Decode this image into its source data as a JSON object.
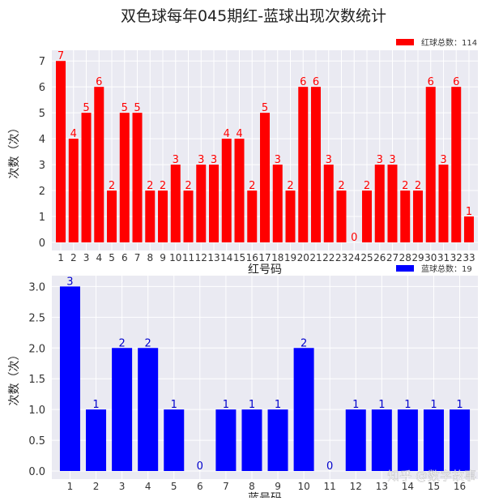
{
  "title": "双色球每年045期红-蓝球出现次数统计",
  "watermark": "知乎 @数字故事",
  "chart_data": [
    {
      "type": "bar",
      "title": "双色球每年045期红-蓝球出现次数统计",
      "xlabel": "红号码",
      "ylabel": "次数（次）",
      "categories": [
        "1",
        "2",
        "3",
        "4",
        "5",
        "6",
        "7",
        "8",
        "9",
        "10",
        "11",
        "12",
        "13",
        "14",
        "15",
        "16",
        "17",
        "18",
        "19",
        "20",
        "21",
        "22",
        "23",
        "24",
        "25",
        "26",
        "27",
        "28",
        "29",
        "30",
        "31",
        "32",
        "33"
      ],
      "values": [
        7,
        4,
        5,
        6,
        2,
        5,
        5,
        2,
        2,
        3,
        2,
        3,
        3,
        4,
        4,
        2,
        5,
        3,
        2,
        6,
        6,
        3,
        2,
        0,
        2,
        3,
        3,
        2,
        2,
        6,
        3,
        6,
        1
      ],
      "ylim": [
        0,
        7.35
      ],
      "yticks": [
        0,
        1,
        2,
        3,
        4,
        5,
        6,
        7
      ],
      "color": "#ff0000",
      "label_color": "#ff0000",
      "legend": "红球总数：114",
      "legend_position": "top-right",
      "grid": true
    },
    {
      "type": "bar",
      "xlabel": "蓝号码",
      "ylabel": "次数（次）",
      "categories": [
        "1",
        "2",
        "3",
        "4",
        "5",
        "6",
        "7",
        "8",
        "9",
        "10",
        "11",
        "12",
        "13",
        "14",
        "15",
        "16"
      ],
      "values": [
        3,
        1,
        2,
        2,
        1,
        0,
        1,
        1,
        1,
        2,
        0,
        1,
        1,
        1,
        1,
        1
      ],
      "ylim": [
        0,
        3.15
      ],
      "yticks": [
        "0.0",
        "0.5",
        "1.0",
        "1.5",
        "2.0",
        "2.5",
        "3.0"
      ],
      "color": "#0000ff",
      "label_color": "#0000cc",
      "legend": "蓝球总数：19",
      "legend_position": "top-right",
      "grid": true
    }
  ]
}
